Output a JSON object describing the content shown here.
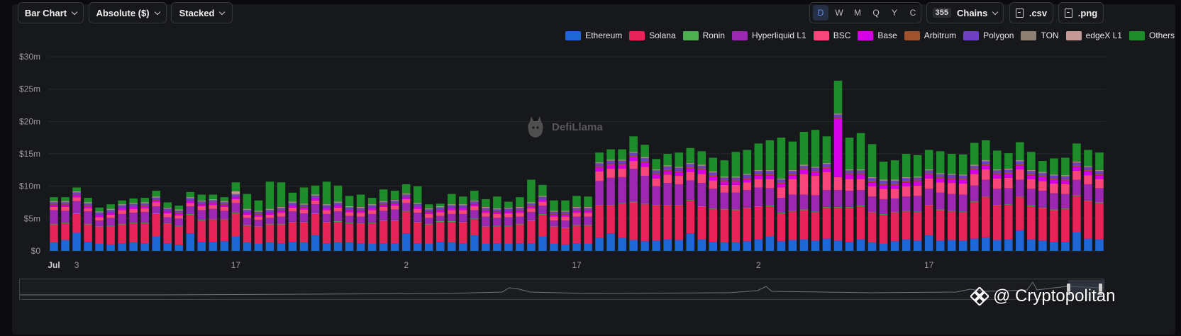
{
  "toolbar": {
    "chart_type": "Bar Chart",
    "value_mode": "Absolute ($)",
    "stack_mode": "Stacked",
    "periods": [
      "D",
      "W",
      "M",
      "Q",
      "Y",
      "C"
    ],
    "active_period": "D",
    "chains_count": "355",
    "chains_label": "Chains",
    "csv_label": ".csv",
    "png_label": ".png"
  },
  "watermark": "DefiLlama",
  "credit": "@ Cryptopolitan",
  "chart_data": {
    "type": "bar",
    "stacked": true,
    "title": "",
    "xlabel": "",
    "ylabel": "",
    "ylim": [
      0,
      30
    ],
    "y_unit": "$m",
    "y_ticks": [
      0,
      5,
      10,
      15,
      20,
      25,
      30
    ],
    "y_tick_labels": [
      "$0",
      "$5m",
      "$10m",
      "$15m",
      "$20m",
      "$25m",
      "$30m"
    ],
    "x_tick_labels": [
      {
        "label": "Jul",
        "index": 0,
        "bold": true
      },
      {
        "label": "3",
        "index": 2
      },
      {
        "label": "17",
        "index": 16
      },
      {
        "label": "2",
        "index": 31
      },
      {
        "label": "17",
        "index": 46
      },
      {
        "label": "2",
        "index": 62
      },
      {
        "label": "17",
        "index": 77
      }
    ],
    "grid": true,
    "legend_position": "top-right",
    "series": [
      {
        "name": "Ethereum",
        "color": "#1f67d6",
        "values": [
          1.3,
          1.7,
          2.8,
          1.4,
          1.1,
          1.0,
          1.2,
          1.3,
          1.2,
          2.3,
          1.2,
          0.9,
          2.7,
          1.4,
          1.4,
          1.5,
          2.3,
          1.3,
          1.1,
          1.3,
          1.2,
          1.4,
          1.3,
          2.4,
          1.2,
          1.3,
          1.3,
          1.2,
          1.1,
          1.2,
          1.2,
          2.7,
          1.2,
          1.1,
          1.4,
          1.3,
          1.2,
          2.4,
          1.1,
          1.2,
          1.1,
          1.2,
          1.2,
          2.3,
          1.1,
          1.0,
          1.2,
          1.1,
          2.0,
          2.7,
          2.0,
          1.7,
          1.5,
          1.6,
          1.8,
          1.7,
          2.7,
          1.8,
          1.4,
          1.3,
          1.3,
          1.5,
          1.8,
          2.3,
          1.5,
          1.7,
          1.8,
          1.6,
          1.9,
          1.6,
          1.4,
          1.8,
          1.3,
          1.1,
          1.5,
          1.8,
          1.6,
          2.4,
          1.6,
          1.7,
          1.6,
          1.9,
          2.1,
          1.7,
          1.8,
          3.2,
          1.8,
          1.6,
          1.4,
          1.4,
          2.9,
          1.9,
          1.8
        ]
      },
      {
        "name": "Solana",
        "color": "#e6245a",
        "values": [
          2.8,
          2.6,
          2.9,
          2.7,
          2.6,
          2.8,
          2.9,
          3.0,
          3.1,
          3.4,
          3.0,
          2.9,
          2.9,
          3.3,
          3.4,
          3.3,
          3.5,
          2.6,
          2.6,
          2.8,
          2.9,
          3.0,
          3.1,
          3.3,
          3.2,
          3.2,
          3.0,
          3.0,
          3.2,
          3.4,
          3.4,
          3.4,
          3.2,
          3.0,
          3.1,
          3.2,
          3.2,
          2.5,
          2.6,
          2.6,
          2.7,
          2.9,
          3.4,
          3.3,
          2.6,
          2.5,
          2.7,
          2.8,
          5.0,
          4.3,
          5.3,
          5.8,
          5.7,
          5.4,
          5.2,
          5.3,
          5.1,
          5.0,
          5.1,
          5.1,
          5.0,
          5.1,
          5.0,
          4.6,
          4.3,
          4.4,
          4.5,
          4.4,
          4.8,
          5.1,
          5.3,
          5.1,
          4.6,
          4.5,
          4.4,
          4.3,
          4.4,
          4.6,
          4.7,
          4.4,
          4.4,
          5.7,
          6.2,
          5.3,
          5.3,
          5.1,
          5.1,
          5.0,
          4.9,
          5.1,
          5.6,
          5.8,
          5.6
        ]
      },
      {
        "name": "Ronin",
        "color": "#4caf50",
        "values": [
          0.1,
          0.1,
          0.1,
          0.1,
          0.1,
          0.1,
          0.1,
          0.1,
          0.1,
          0.1,
          0.1,
          0.1,
          0.1,
          0.1,
          0.1,
          0.1,
          0.1,
          0.1,
          0.1,
          0.1,
          0.1,
          0.1,
          0.1,
          0.1,
          0.1,
          0.1,
          0.1,
          0.1,
          0.1,
          0.1,
          0.1,
          0.1,
          0.1,
          0.1,
          0.1,
          0.1,
          0.1,
          0.1,
          0.1,
          0.1,
          0.1,
          0.1,
          0.1,
          0.1,
          0.1,
          0.1,
          0.1,
          0.1,
          0.1,
          0.1,
          0.1,
          0.1,
          0.1,
          0.1,
          0.1,
          0.1,
          0.1,
          0.1,
          0.1,
          0.1,
          0.1,
          0.1,
          0.1,
          0.1,
          0.1,
          0.1,
          0.1,
          0.1,
          0.1,
          0.1,
          0.1,
          0.1,
          0.1,
          0.1,
          0.1,
          0.1,
          0.1,
          0.1,
          0.1,
          0.1,
          0.1,
          0.1,
          0.1,
          0.1,
          0.1,
          0.1,
          0.1,
          0.1,
          0.1,
          0.1,
          0.1,
          0.1,
          0.1
        ]
      },
      {
        "name": "Hyperliquid L1",
        "color": "#9c27b0",
        "values": [
          2.1,
          1.8,
          1.9,
          1.9,
          0.9,
          1.2,
          1.5,
          1.5,
          1.6,
          1.1,
          0.9,
          1.1,
          1.2,
          1.5,
          1.6,
          1.3,
          1.5,
          1.1,
          1.0,
          0.9,
          1.1,
          1.6,
          1.3,
          1.4,
          1.2,
          1.5,
          1.0,
          1.0,
          1.3,
          1.5,
          1.7,
          1.2,
          1.4,
          0.9,
          0.8,
          1.1,
          1.2,
          1.3,
          1.5,
          1.2,
          1.3,
          1.1,
          1.3,
          1.3,
          0.9,
          1.1,
          1.3,
          1.3,
          3.7,
          4.2,
          4.0,
          5.1,
          4.3,
          2.9,
          3.4,
          3.2,
          3.0,
          3.6,
          3.0,
          2.5,
          2.6,
          2.7,
          2.9,
          2.7,
          2.3,
          2.5,
          2.3,
          2.5,
          2.6,
          2.6,
          2.5,
          2.4,
          2.4,
          2.3,
          2.1,
          2.2,
          2.4,
          2.5,
          2.6,
          2.6,
          2.6,
          2.4,
          2.6,
          2.5,
          2.5,
          2.6,
          2.6,
          2.6,
          2.5,
          2.2,
          2.4,
          2.5,
          2.2
        ]
      },
      {
        "name": "BSC",
        "color": "#f7477a",
        "values": [
          0.5,
          0.6,
          0.6,
          0.5,
          0.5,
          0.5,
          0.6,
          0.6,
          0.6,
          0.6,
          0.6,
          0.5,
          0.5,
          0.6,
          0.6,
          0.6,
          0.6,
          0.5,
          0.5,
          0.5,
          0.6,
          0.6,
          0.6,
          0.6,
          0.6,
          0.6,
          0.6,
          0.6,
          0.6,
          0.6,
          0.6,
          0.6,
          0.6,
          0.6,
          0.6,
          0.6,
          0.6,
          0.6,
          0.6,
          0.6,
          0.6,
          0.6,
          0.6,
          0.6,
          0.6,
          0.6,
          0.6,
          0.6,
          1.5,
          1.4,
          1.3,
          1.2,
          1.4,
          1.2,
          1.3,
          1.3,
          1.3,
          1.4,
          1.3,
          1.2,
          1.2,
          1.2,
          1.3,
          1.4,
          1.6,
          2.4,
          3.2,
          3.0,
          2.8,
          2.0,
          1.8,
          1.7,
          1.6,
          1.6,
          1.5,
          1.6,
          1.6,
          1.6,
          1.6,
          1.7,
          1.7,
          1.8,
          1.6,
          1.6,
          1.6,
          1.6,
          1.5,
          1.5,
          1.5,
          1.5,
          1.4,
          1.4,
          1.4
        ]
      },
      {
        "name": "Base",
        "color": "#d400e6",
        "values": [
          0.3,
          0.3,
          0.3,
          0.3,
          0.3,
          0.3,
          0.3,
          0.3,
          0.3,
          0.3,
          0.3,
          0.3,
          0.3,
          0.3,
          0.3,
          0.3,
          0.3,
          0.3,
          0.3,
          0.3,
          0.3,
          0.3,
          0.3,
          0.3,
          0.3,
          0.3,
          0.3,
          0.3,
          0.3,
          0.3,
          0.3,
          0.3,
          0.3,
          0.3,
          0.3,
          0.3,
          0.3,
          0.3,
          0.3,
          0.3,
          0.3,
          0.3,
          0.3,
          0.3,
          0.3,
          0.3,
          0.3,
          0.3,
          0.6,
          0.6,
          0.6,
          0.6,
          0.7,
          0.6,
          0.6,
          0.6,
          0.6,
          0.6,
          0.6,
          0.5,
          0.5,
          0.5,
          0.6,
          0.6,
          0.6,
          0.6,
          0.6,
          0.6,
          0.6,
          9.0,
          0.7,
          0.7,
          0.6,
          0.6,
          0.6,
          0.6,
          0.6,
          0.6,
          0.6,
          0.6,
          0.6,
          0.6,
          0.6,
          0.6,
          0.6,
          0.6,
          0.6,
          0.6,
          0.6,
          0.6,
          0.6,
          0.6,
          0.6
        ]
      },
      {
        "name": "Arbitrum",
        "color": "#a0522d",
        "values": [
          0.1,
          0.1,
          0.1,
          0.1,
          0.1,
          0.1,
          0.1,
          0.1,
          0.1,
          0.1,
          0.1,
          0.1,
          0.1,
          0.1,
          0.1,
          0.1,
          0.1,
          0.1,
          0.1,
          0.1,
          0.1,
          0.1,
          0.1,
          0.1,
          0.1,
          0.1,
          0.1,
          0.1,
          0.1,
          0.1,
          0.1,
          0.1,
          0.1,
          0.1,
          0.1,
          0.1,
          0.1,
          0.1,
          0.1,
          0.1,
          0.1,
          0.1,
          0.1,
          0.1,
          0.1,
          0.1,
          0.1,
          0.1,
          0.2,
          0.2,
          0.2,
          0.2,
          0.2,
          0.2,
          0.2,
          0.2,
          0.2,
          0.2,
          0.2,
          0.2,
          0.2,
          0.2,
          0.2,
          0.2,
          0.2,
          0.2,
          0.2,
          0.2,
          0.2,
          0.2,
          0.2,
          0.2,
          0.2,
          0.2,
          0.2,
          0.2,
          0.2,
          0.2,
          0.2,
          0.2,
          0.2,
          0.2,
          0.2,
          0.2,
          0.2,
          0.2,
          0.2,
          0.2,
          0.2,
          0.2,
          0.2,
          0.2,
          0.2
        ]
      },
      {
        "name": "Polygon",
        "color": "#6f3fc4",
        "values": [
          0.3,
          0.3,
          0.3,
          0.3,
          0.3,
          0.3,
          0.3,
          0.3,
          0.3,
          0.3,
          0.3,
          0.3,
          0.3,
          0.3,
          0.3,
          0.3,
          0.3,
          0.3,
          0.3,
          0.3,
          0.3,
          0.3,
          0.3,
          0.3,
          0.3,
          0.3,
          0.3,
          0.3,
          0.3,
          0.3,
          0.3,
          0.3,
          0.3,
          0.3,
          0.3,
          0.3,
          0.3,
          0.3,
          0.3,
          0.3,
          0.3,
          0.3,
          0.3,
          0.3,
          0.3,
          0.3,
          0.3,
          0.3,
          0.4,
          0.4,
          0.4,
          0.4,
          0.4,
          0.4,
          0.4,
          0.4,
          0.4,
          0.4,
          0.4,
          0.4,
          0.4,
          0.4,
          0.4,
          0.4,
          0.4,
          0.4,
          0.4,
          0.4,
          0.4,
          0.4,
          0.4,
          0.4,
          0.4,
          0.4,
          0.4,
          0.4,
          0.4,
          0.4,
          0.4,
          0.4,
          0.4,
          0.4,
          0.4,
          0.4,
          0.4,
          0.4,
          0.4,
          0.4,
          0.4,
          0.4,
          0.4,
          0.4,
          0.4
        ]
      },
      {
        "name": "TON",
        "color": "#8d7f72",
        "values": [
          0.1,
          0.1,
          0.1,
          0.1,
          0.1,
          0.1,
          0.1,
          0.1,
          0.1,
          0.1,
          0.1,
          0.1,
          0.1,
          0.1,
          0.1,
          0.1,
          0.1,
          0.1,
          0.1,
          0.1,
          0.1,
          0.1,
          0.1,
          0.1,
          0.1,
          0.1,
          0.1,
          0.1,
          0.1,
          0.1,
          0.1,
          0.1,
          0.1,
          0.1,
          0.1,
          0.1,
          0.1,
          0.1,
          0.1,
          0.1,
          0.1,
          0.1,
          0.1,
          0.1,
          0.1,
          0.1,
          0.1,
          0.1,
          0.1,
          0.1,
          0.1,
          0.1,
          0.1,
          0.1,
          0.1,
          0.1,
          0.1,
          0.1,
          0.1,
          0.1,
          0.1,
          0.1,
          0.1,
          0.1,
          0.1,
          0.1,
          0.1,
          0.1,
          0.1,
          0.1,
          0.1,
          0.1,
          0.1,
          0.1,
          0.1,
          0.1,
          0.1,
          0.1,
          0.1,
          0.1,
          0.1,
          0.1,
          0.1,
          0.1,
          0.1,
          0.1,
          0.1,
          0.1,
          0.1,
          0.1,
          0.1,
          0.1,
          0.1
        ]
      },
      {
        "name": "edgeX L1",
        "color": "#c49a97",
        "values": [
          0.1,
          0.1,
          0.1,
          0.1,
          0.1,
          0.1,
          0.1,
          0.1,
          0.1,
          0.1,
          0.1,
          0.1,
          0.1,
          0.1,
          0.1,
          0.1,
          0.4,
          0.1,
          0.1,
          0.1,
          0.1,
          0.1,
          0.1,
          0.1,
          0.1,
          0.1,
          0.1,
          0.1,
          0.1,
          0.1,
          0.1,
          0.1,
          0.1,
          0.1,
          0.1,
          0.1,
          0.1,
          0.1,
          0.1,
          0.1,
          0.1,
          0.1,
          0.1,
          0.1,
          0.1,
          0.1,
          0.1,
          0.1,
          0.1,
          0.1,
          0.1,
          0.1,
          0.1,
          0.1,
          0.1,
          0.1,
          0.1,
          0.1,
          0.1,
          0.1,
          0.1,
          0.1,
          0.1,
          0.1,
          0.1,
          0.1,
          0.1,
          0.1,
          0.1,
          0.1,
          0.1,
          0.1,
          0.1,
          0.1,
          0.1,
          0.1,
          0.1,
          0.1,
          0.1,
          0.1,
          0.1,
          0.1,
          0.1,
          0.1,
          0.1,
          0.1,
          0.1,
          0.1,
          0.1,
          0.1,
          0.1,
          0.1,
          0.1
        ]
      },
      {
        "name": "Others",
        "color": "#1e8c2a",
        "values": [
          0.6,
          0.6,
          0.6,
          0.7,
          0.6,
          0.7,
          0.6,
          0.7,
          0.7,
          0.9,
          0.8,
          0.6,
          0.8,
          0.9,
          0.7,
          0.6,
          1.4,
          2.3,
          1.6,
          4.2,
          3.8,
          1.4,
          2.5,
          1.4,
          3.5,
          2.5,
          1.6,
          1.9,
          1.0,
          1.8,
          1.4,
          1.4,
          2.6,
          0.6,
          0.4,
          1.6,
          1.2,
          1.5,
          1.2,
          1.8,
          0.9,
          1.5,
          3.5,
          1.7,
          1.6,
          1.6,
          1.7,
          1.6,
          1.5,
          1.6,
          1.6,
          2.4,
          1.9,
          1.6,
          1.8,
          2.2,
          2.3,
          2.1,
          2.1,
          2.5,
          3.8,
          3.7,
          4.1,
          4.6,
          6.3,
          4.4,
          5.1,
          5.7,
          4.1,
          5.1,
          4.9,
          5.6,
          5.1,
          2.8,
          3.0,
          3.6,
          3.3,
          3.0,
          3.4,
          3.1,
          3.1,
          3.4,
          3.1,
          2.9,
          2.4,
          2.8,
          2.8,
          1.7,
          2.5,
          2.7,
          2.8,
          2.5,
          2.7
        ]
      }
    ]
  }
}
